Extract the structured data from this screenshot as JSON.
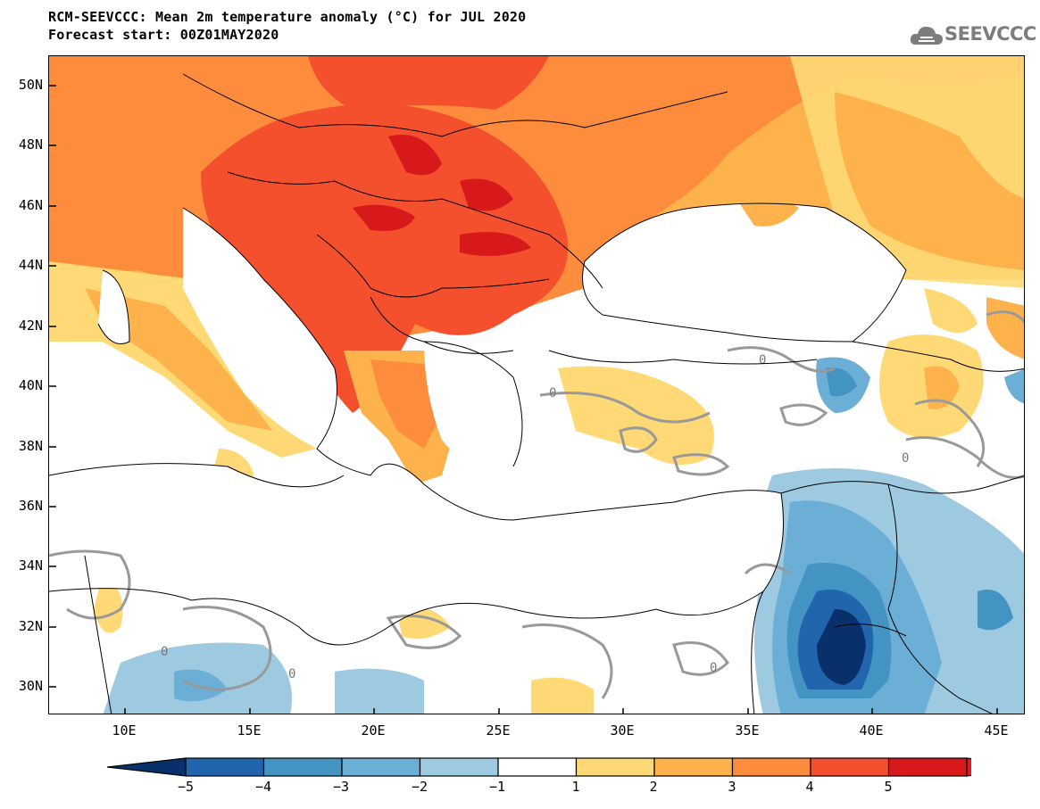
{
  "header": {
    "title_line1": "RCM-SEEVCCC: Mean 2m temperature anomaly (°C) for JUL 2020",
    "title_line2": "Forecast start: 00Z01MAY2020",
    "logo_text": "SEEVCCC"
  },
  "map": {
    "lat_labels": [
      "50N",
      "48N",
      "46N",
      "44N",
      "42N",
      "40N",
      "38N",
      "36N",
      "34N",
      "32N",
      "30N"
    ],
    "lon_labels": [
      "10E",
      "15E",
      "20E",
      "25E",
      "30E",
      "35E",
      "40E",
      "45E"
    ],
    "contour_label": "0"
  },
  "colorbar": {
    "labels": [
      "−5",
      "−4",
      "−3",
      "−2",
      "−1",
      "1",
      "2",
      "3",
      "4",
      "5"
    ],
    "colors": [
      "#08306b",
      "#2166ac",
      "#4393c3",
      "#6baed6",
      "#9ecae1",
      "#ffffff",
      "#fed976",
      "#feb24c",
      "#fd8d3c",
      "#f4502d",
      "#d7191c",
      "#e31a1c"
    ]
  }
}
